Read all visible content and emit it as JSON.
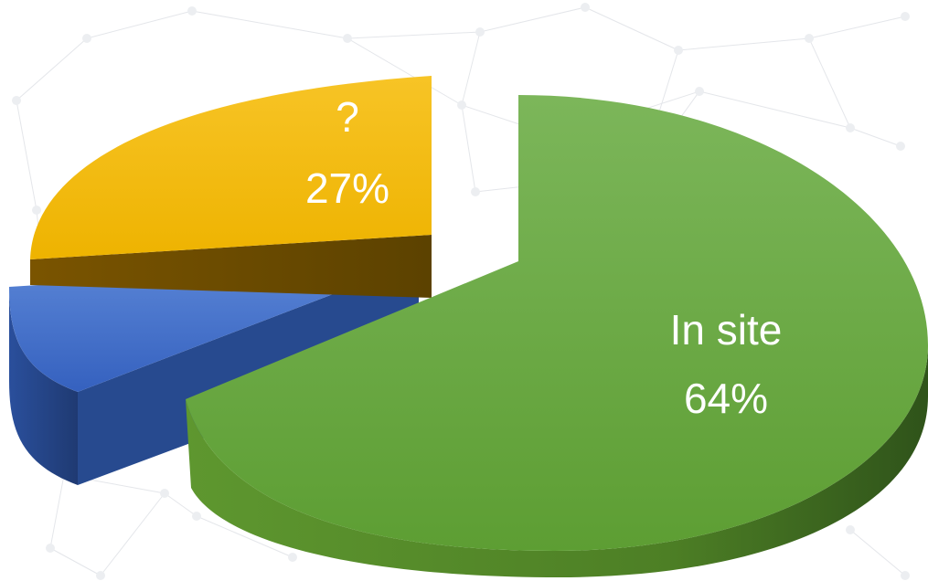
{
  "chart_data": {
    "type": "pie",
    "style": "3d-exploded",
    "slices": [
      {
        "name": "In site",
        "label": "In site",
        "percent_label": "64%",
        "value": 64,
        "color": "#6aa83a"
      },
      {
        "name": "?",
        "label": "?",
        "percent_label": "27%",
        "value": 27,
        "color": "#f2b800"
      },
      {
        "name": "",
        "label": "",
        "percent_label": "",
        "value": 9,
        "color": "#3d68c4"
      }
    ],
    "title": "",
    "legend": "none",
    "grid": false
  }
}
